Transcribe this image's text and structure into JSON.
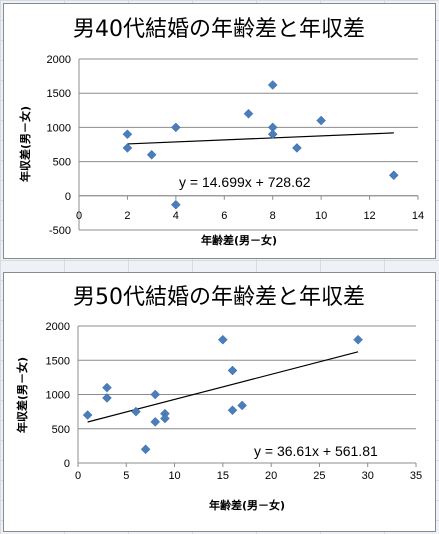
{
  "chart_data": [
    {
      "type": "scatter",
      "title": "男40代結婚の年齢差と年収差",
      "xlabel": "年齢差(男－女)",
      "ylabel": "年収差(男－女)",
      "xlim": [
        0,
        14
      ],
      "ylim": [
        -500,
        2000
      ],
      "xticks": [
        "0",
        "2",
        "4",
        "6",
        "8",
        "10",
        "12",
        "14"
      ],
      "yticks": [
        "-500",
        "0",
        "500",
        "1000",
        "1500",
        "2000"
      ],
      "grid": "horizontal",
      "points": [
        {
          "x": 2,
          "y": 900
        },
        {
          "x": 2,
          "y": 700
        },
        {
          "x": 3,
          "y": 600
        },
        {
          "x": 4,
          "y": 1000
        },
        {
          "x": 4,
          "y": -130
        },
        {
          "x": 7,
          "y": 1200
        },
        {
          "x": 8,
          "y": 1620
        },
        {
          "x": 8,
          "y": 1000
        },
        {
          "x": 8,
          "y": 900
        },
        {
          "x": 9,
          "y": 700
        },
        {
          "x": 10,
          "y": 1100
        },
        {
          "x": 13,
          "y": 300
        }
      ],
      "trendline": {
        "slope": 14.699,
        "intercept": 728.62,
        "x_range": [
          2,
          13
        ]
      },
      "equation": "y = 14.699x + 728.62",
      "marker_color": "#4a7ebb"
    },
    {
      "type": "scatter",
      "title": "男50代結婚の年齢差と年収差",
      "xlabel": "年齢差(男－女)",
      "ylabel": "年収差(男－女)",
      "xlim": [
        0,
        35
      ],
      "ylim": [
        0,
        2000
      ],
      "xticks": [
        "0",
        "5",
        "10",
        "15",
        "20",
        "25",
        "30",
        "35"
      ],
      "yticks": [
        "0",
        "500",
        "1000",
        "1500",
        "2000"
      ],
      "grid": "horizontal",
      "points": [
        {
          "x": 1,
          "y": 700
        },
        {
          "x": 3,
          "y": 1100
        },
        {
          "x": 3,
          "y": 950
        },
        {
          "x": 6,
          "y": 750
        },
        {
          "x": 7,
          "y": 200
        },
        {
          "x": 8,
          "y": 1000
        },
        {
          "x": 8,
          "y": 600
        },
        {
          "x": 9,
          "y": 720
        },
        {
          "x": 9,
          "y": 650
        },
        {
          "x": 15,
          "y": 1800
        },
        {
          "x": 16,
          "y": 1350
        },
        {
          "x": 16,
          "y": 770
        },
        {
          "x": 17,
          "y": 840
        },
        {
          "x": 29,
          "y": 1800
        }
      ],
      "trendline": {
        "slope": 36.61,
        "intercept": 561.81,
        "x_range": [
          1,
          29
        ]
      },
      "equation": "y = 36.61x + 561.81",
      "marker_color": "#4a7ebb"
    }
  ]
}
